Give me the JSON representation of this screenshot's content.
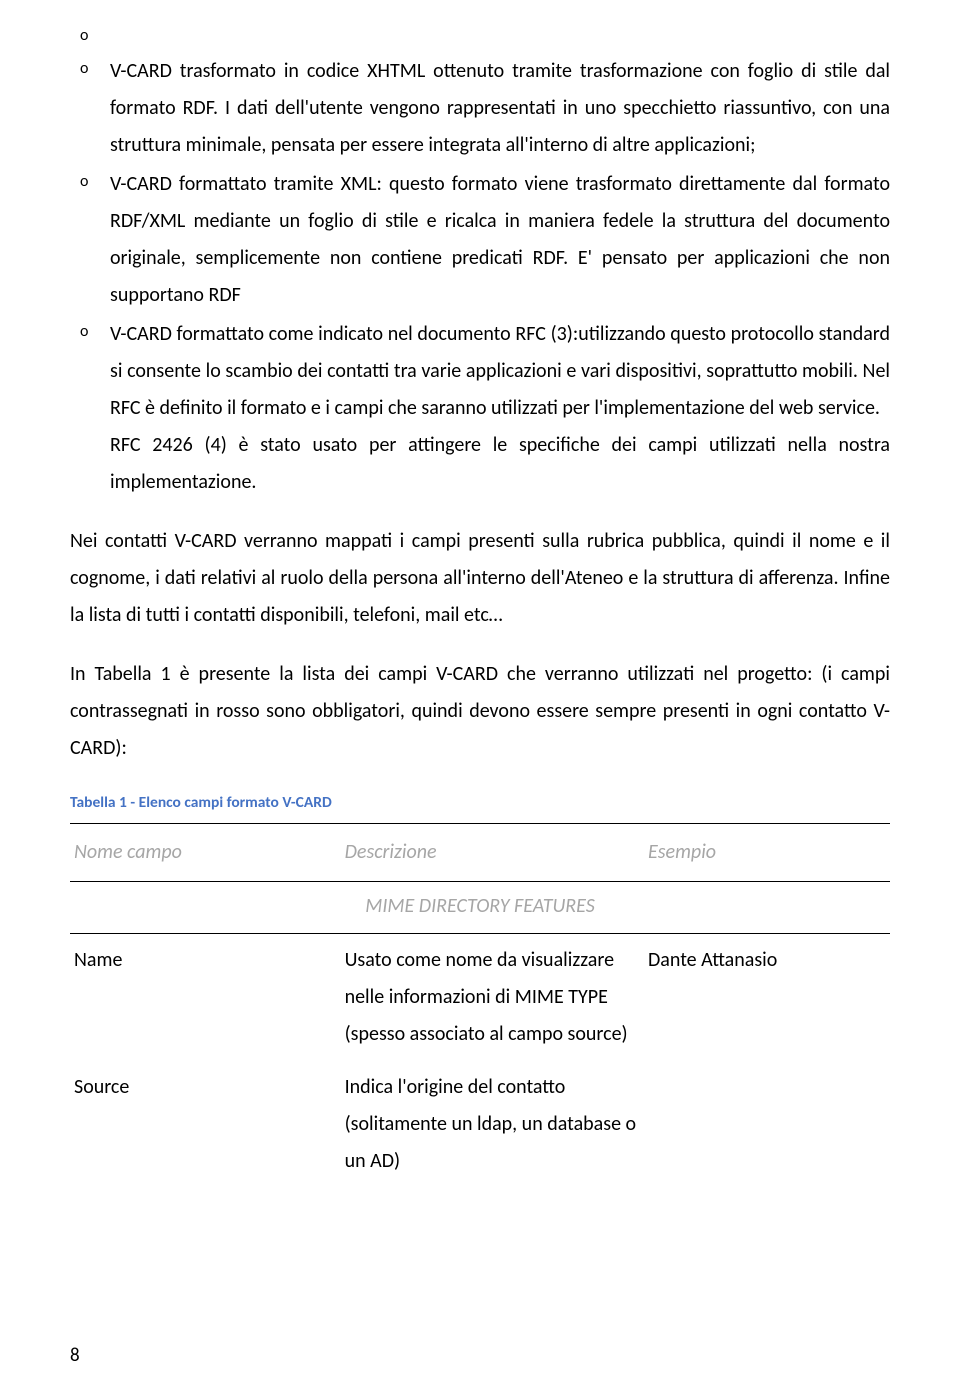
{
  "bullets": {
    "item0": {
      "marker": "o"
    },
    "item1": {
      "marker": "o",
      "text": "V-CARD trasformato in codice XHTML ottenuto tramite trasformazione con foglio di stile dal formato RDF. I dati dell'utente vengono rappresentati in uno specchietto riassuntivo, con una struttura minimale, pensata per essere integrata all'interno di altre applicazioni;"
    },
    "item2": {
      "marker": "o",
      "text": "V-CARD formattato tramite XML: questo formato viene trasformato direttamente dal formato RDF/XML mediante un foglio di stile e ricalca in maniera fedele la struttura del documento originale, semplicemente non contiene predicati RDF. E' pensato per applicazioni che non supportano RDF"
    },
    "item3": {
      "marker": "o",
      "text": "V-CARD formattato come indicato nel documento RFC (3):utilizzando questo protocollo standard si consente lo scambio dei contatti tra varie applicazioni e vari dispositivi, soprattutto mobili. Nel RFC è definito il formato e i campi che saranno utilizzati per l'implementazione del web service.",
      "text2": "RFC 2426 (4) è stato usato per attingere le specifiche dei campi utilizzati nella nostra implementazione."
    }
  },
  "para1": "Nei contatti V-CARD verranno mappati i campi presenti sulla rubrica pubblica, quindi il nome e il cognome, i dati relativi al ruolo della persona all'interno dell'Ateneo e la struttura di afferenza. Infine la lista di tutti i contatti disponibili, telefoni, mail etc…",
  "para2": "In Tabella 1 è presente la lista dei campi  V-CARD che verranno utilizzati nel progetto: (i campi contrassegnati in rosso sono obbligatori, quindi devono essere sempre presenti in ogni contatto V-CARD):",
  "table": {
    "caption": "Tabella 1 - Elenco campi formato V-CARD",
    "headers": {
      "h1": "Nome campo",
      "h2": "Descrizione",
      "h3": "Esempio"
    },
    "section": "MIME DIRECTORY FEATURES",
    "rows": {
      "r0": {
        "c0": "Name",
        "c1": "Usato come nome da visualizzare nelle informazioni di MIME TYPE (spesso associato al campo source)",
        "c2": "Dante Attanasio"
      },
      "r1": {
        "c0": "Source",
        "c1": "Indica l'origine del contatto (solitamente un ldap, un database o un AD)",
        "c2": ""
      }
    }
  },
  "page_number": "8"
}
